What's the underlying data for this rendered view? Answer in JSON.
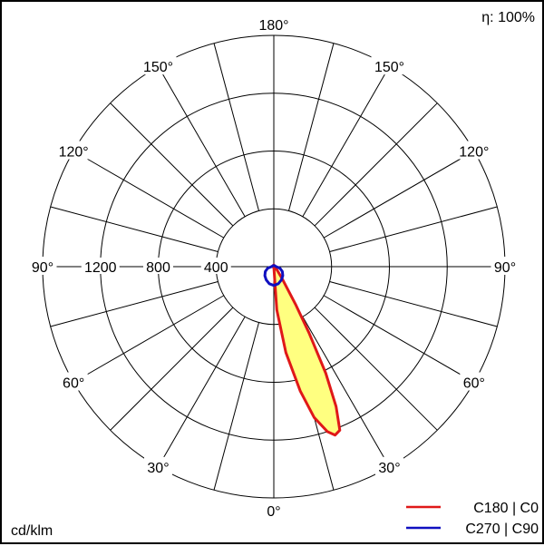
{
  "efficiency_label": "η: 100%",
  "unit_label": "cd/klm",
  "colors": {
    "c0_line": "#e01818",
    "c90_line": "#1010c0",
    "fill": "#ffff80",
    "grid": "#000000"
  },
  "chart_data": {
    "type": "polar",
    "radial_max": 1600,
    "radial_ticks": [
      400,
      800,
      1200,
      1600
    ],
    "radial_tick_labels": [
      "400",
      "800",
      "1200"
    ],
    "angle_step_deg": 15,
    "angle_labels": [
      {
        "deg": 0,
        "side": "center",
        "text": "0°"
      },
      {
        "deg": 30,
        "side": "right",
        "text": "30°"
      },
      {
        "deg": 30,
        "side": "left",
        "text": "30°"
      },
      {
        "deg": 60,
        "side": "right",
        "text": "60°"
      },
      {
        "deg": 60,
        "side": "left",
        "text": "60°"
      },
      {
        "deg": 90,
        "side": "right",
        "text": "90°"
      },
      {
        "deg": 90,
        "side": "left",
        "text": "90°"
      },
      {
        "deg": 120,
        "side": "right",
        "text": "120°"
      },
      {
        "deg": 120,
        "side": "left",
        "text": "120°"
      },
      {
        "deg": 150,
        "side": "right",
        "text": "150°"
      },
      {
        "deg": 150,
        "side": "left",
        "text": "150°"
      },
      {
        "deg": 180,
        "side": "center",
        "text": "180°"
      }
    ],
    "series": [
      {
        "name": "C180 | C0",
        "color": "#e01818",
        "filled": true,
        "points": [
          {
            "angle": 0,
            "value": 0
          },
          {
            "angle": 4,
            "value": 300
          },
          {
            "angle": 8,
            "value": 600
          },
          {
            "angle": 12,
            "value": 880
          },
          {
            "angle": 15,
            "value": 1080
          },
          {
            "angle": 18,
            "value": 1200
          },
          {
            "angle": 20,
            "value": 1240
          },
          {
            "angle": 22,
            "value": 1220
          },
          {
            "angle": 24,
            "value": 1060
          },
          {
            "angle": 26,
            "value": 820
          },
          {
            "angle": 28,
            "value": 520
          },
          {
            "angle": 30,
            "value": 300
          },
          {
            "angle": 35,
            "value": 100
          },
          {
            "angle": 45,
            "value": 30
          },
          {
            "angle": 90,
            "value": 0
          },
          {
            "angle": 160,
            "value": 8
          },
          {
            "angle": 180,
            "value": 12
          },
          {
            "angle": -160,
            "value": 10
          },
          {
            "angle": -90,
            "value": 2
          },
          {
            "angle": -40,
            "value": 5
          },
          {
            "angle": -20,
            "value": 6
          },
          {
            "angle": -10,
            "value": 3
          },
          {
            "angle": 0,
            "value": 0
          }
        ]
      },
      {
        "name": "C270 | C90",
        "color": "#1010c0",
        "filled": false,
        "points": [
          {
            "angle": 0,
            "value": 130
          },
          {
            "angle": 15,
            "value": 122
          },
          {
            "angle": 30,
            "value": 106
          },
          {
            "angle": 45,
            "value": 88
          },
          {
            "angle": 60,
            "value": 68
          },
          {
            "angle": 75,
            "value": 44
          },
          {
            "angle": 90,
            "value": 16
          },
          {
            "angle": 120,
            "value": 10
          },
          {
            "angle": 150,
            "value": 8
          },
          {
            "angle": 180,
            "value": 8
          },
          {
            "angle": -150,
            "value": 8
          },
          {
            "angle": -120,
            "value": 10
          },
          {
            "angle": -90,
            "value": 16
          },
          {
            "angle": -75,
            "value": 44
          },
          {
            "angle": -60,
            "value": 68
          },
          {
            "angle": -45,
            "value": 88
          },
          {
            "angle": -30,
            "value": 106
          },
          {
            "angle": -15,
            "value": 122
          },
          {
            "angle": 0,
            "value": 130
          }
        ]
      }
    ],
    "legend_position": "bottom-right"
  }
}
